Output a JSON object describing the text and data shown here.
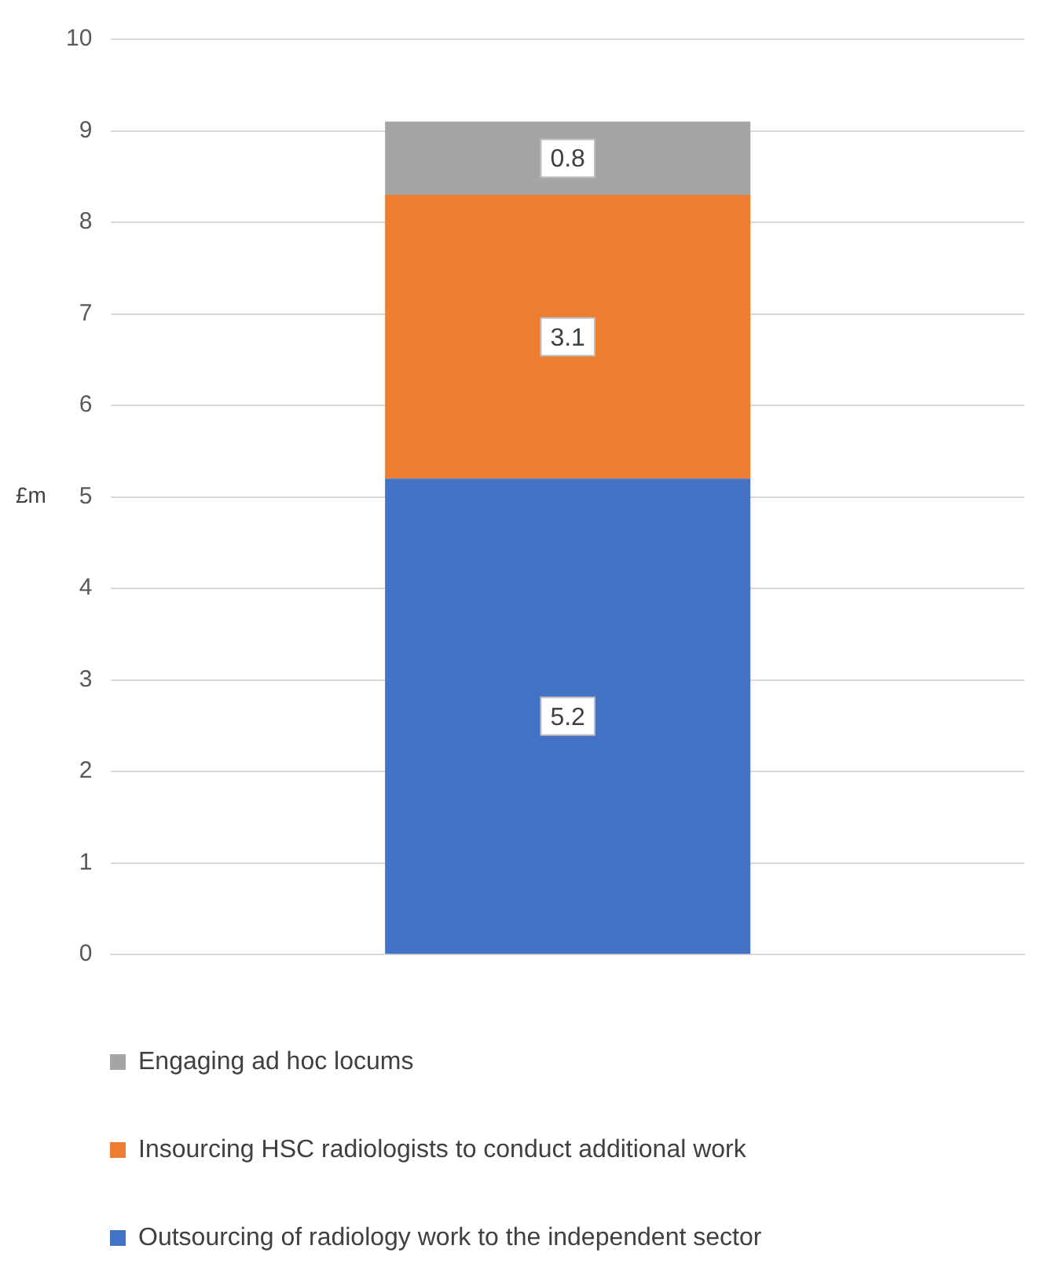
{
  "chart_data": {
    "type": "bar",
    "stacked": true,
    "categories": [
      null
    ],
    "ylabel": "£m",
    "ylim": [
      0,
      10
    ],
    "yticks": [
      0,
      1,
      2,
      3,
      4,
      5,
      6,
      7,
      8,
      9,
      10
    ],
    "grid": "y",
    "legend": "bottom",
    "data_labels": true,
    "series": [
      {
        "name": "Outsourcing of radiology work to the independent sector",
        "color": "#4472c4",
        "values": [
          5.2
        ]
      },
      {
        "name": "Insourcing HSC radiologists to conduct additional work",
        "color": "#ed7d31",
        "values": [
          3.1
        ]
      },
      {
        "name": "Engaging ad hoc locums",
        "color": "#a5a5a5",
        "values": [
          0.8
        ]
      }
    ]
  }
}
